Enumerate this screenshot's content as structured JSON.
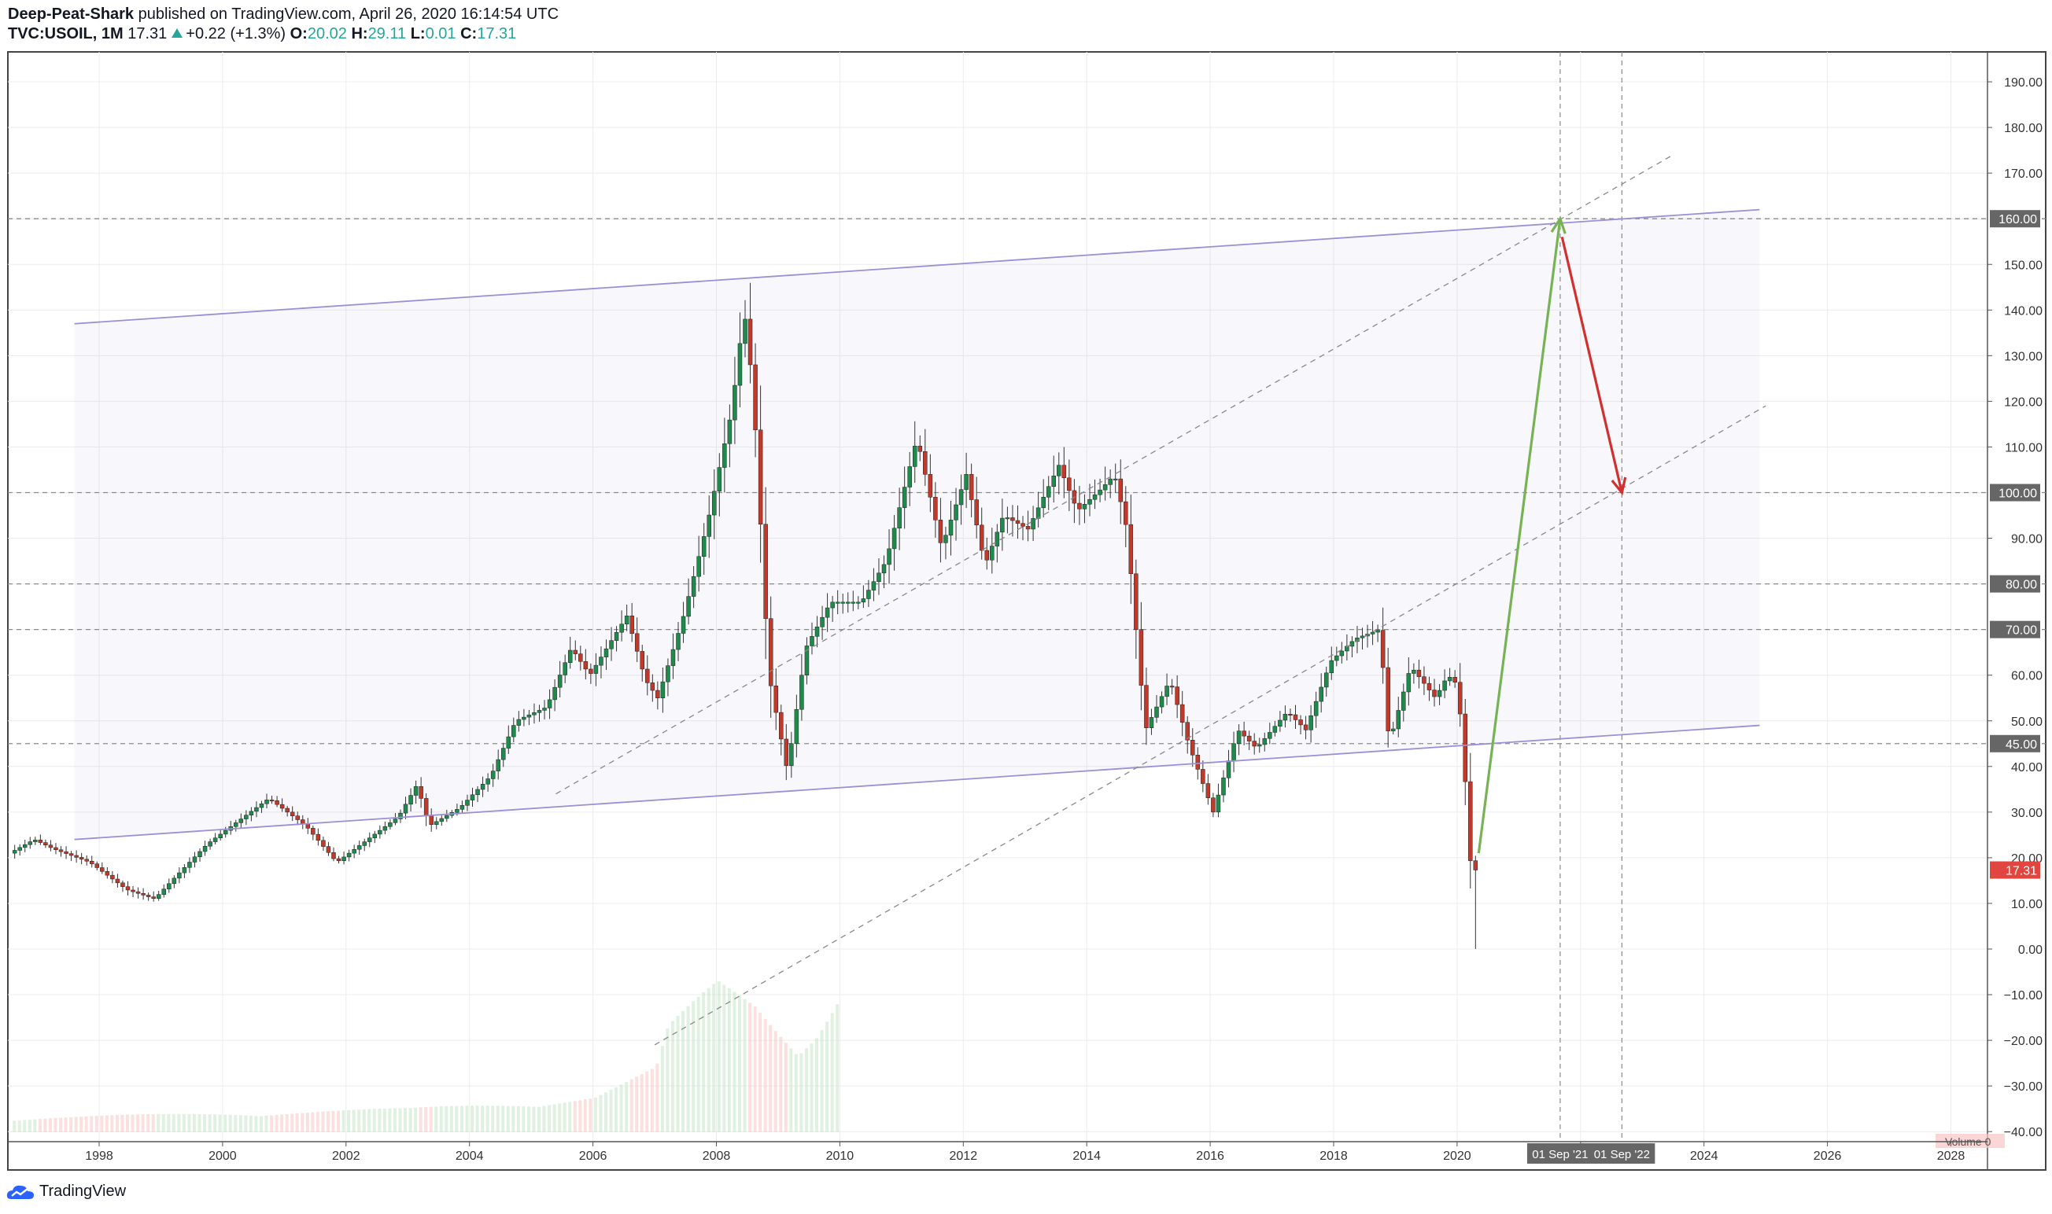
{
  "header": {
    "author": "Deep-Peat-Shark",
    "published": "published on TradingView.com, April 26, 2020 16:14:54 UTC",
    "symbol": "TVC:USOIL, 1M",
    "last": "17.31",
    "change": "+0.22 (+1.3%)",
    "o_label": "O:",
    "o_value": "20.02",
    "h_label": "H:",
    "h_value": "29.11",
    "l_label": "L:",
    "l_value": "0.01",
    "c_label": "C:",
    "c_value": "17.31"
  },
  "footer": {
    "brand": "TradingView"
  },
  "colors": {
    "up": "#26a69a",
    "down": "#ef5350",
    "candle_up_fill": "#ffffff",
    "candle_up_body": "#1f8a4c",
    "candle_down_body": "#c0392b",
    "channel": "#9c8fd6",
    "arrow_up": "#77b255",
    "arrow_down": "#d32f2f",
    "grid": "#ececec",
    "label_bg": "#666666"
  },
  "chart_data": {
    "type": "candlestick",
    "title": "TVC:USOIL, 1M",
    "y_axis": {
      "min": -40,
      "max": 190,
      "step": 10,
      "tick_labels": [
        "190.00",
        "180.00",
        "170.00",
        "160.00",
        "150.00",
        "140.00",
        "130.00",
        "120.00",
        "110.00",
        "100.00",
        "90.00",
        "80.00",
        "70.00",
        "60.00",
        "50.00",
        "45.00",
        "40.00",
        "30.00",
        "20.00",
        "10.00",
        "0.00",
        "−10.00",
        "−20.00",
        "−30.00",
        "−40.00"
      ]
    },
    "x_axis": {
      "tick_labels": [
        "1998",
        "2000",
        "2002",
        "2004",
        "2006",
        "2008",
        "2010",
        "2012",
        "2014",
        "2016",
        "2018",
        "2020",
        "2022",
        "2024",
        "2026",
        "2028"
      ],
      "tick_years": [
        1998,
        2000,
        2002,
        2004,
        2006,
        2008,
        2010,
        2012,
        2014,
        2016,
        2018,
        2020,
        2022,
        2024,
        2026,
        2028
      ]
    },
    "horizontal_levels": [
      {
        "value": 160,
        "label": "160.00"
      },
      {
        "value": 100,
        "label": "100.00"
      },
      {
        "value": 80,
        "label": "80.00"
      },
      {
        "value": 70,
        "label": "70.00"
      },
      {
        "value": 45,
        "label": "45.00"
      }
    ],
    "last_price": {
      "value": 17.31,
      "label": "17.31"
    },
    "vertical_markers": [
      {
        "date": 2021.67,
        "label": "01 Sep '21"
      },
      {
        "date": 2022.67,
        "label": "01 Sep '22"
      }
    ],
    "channel_lines": [
      {
        "name": "upper",
        "from": [
          1997.6,
          137
        ],
        "to": [
          2024.9,
          162
        ]
      },
      {
        "name": "lower",
        "from": [
          1997.6,
          24
        ],
        "to": [
          2024.9,
          49
        ]
      }
    ],
    "dashed_trendlines": [
      {
        "from": [
          2005.4,
          34
        ],
        "to": [
          2023.5,
          174
        ]
      },
      {
        "from": [
          2007.0,
          -21
        ],
        "to": [
          2025.0,
          119
        ]
      }
    ],
    "projection_arrows": [
      {
        "name": "rally",
        "from": [
          2020.35,
          21
        ],
        "to": [
          2021.67,
          160
        ]
      },
      {
        "name": "pullback",
        "from": [
          2021.7,
          156
        ],
        "to": [
          2022.67,
          100
        ]
      }
    ],
    "volume_label": "Volume 0",
    "price_keypoints": [
      [
        1996.6,
        21
      ],
      [
        1997.0,
        24
      ],
      [
        1997.3,
        22
      ],
      [
        1997.9,
        19
      ],
      [
        1998.5,
        13
      ],
      [
        1998.95,
        11
      ],
      [
        1999.3,
        16
      ],
      [
        1999.8,
        23
      ],
      [
        2000.3,
        28
      ],
      [
        2000.8,
        33
      ],
      [
        2001.4,
        27
      ],
      [
        2001.9,
        19
      ],
      [
        2002.3,
        23
      ],
      [
        2002.9,
        29
      ],
      [
        2003.2,
        36
      ],
      [
        2003.4,
        27
      ],
      [
        2003.9,
        31
      ],
      [
        2004.4,
        38
      ],
      [
        2004.8,
        50
      ],
      [
        2005.3,
        53
      ],
      [
        2005.7,
        66
      ],
      [
        2006.0,
        60
      ],
      [
        2006.6,
        73
      ],
      [
        2006.9,
        59
      ],
      [
        2007.1,
        55
      ],
      [
        2007.5,
        72
      ],
      [
        2007.9,
        93
      ],
      [
        2008.3,
        118
      ],
      [
        2008.5,
        140
      ],
      [
        2008.65,
        122
      ],
      [
        2008.9,
        60
      ],
      [
        2009.2,
        39
      ],
      [
        2009.5,
        66
      ],
      [
        2009.9,
        76
      ],
      [
        2010.4,
        76
      ],
      [
        2010.8,
        85
      ],
      [
        2011.3,
        112
      ],
      [
        2011.7,
        88
      ],
      [
        2012.1,
        104
      ],
      [
        2012.4,
        84
      ],
      [
        2012.7,
        95
      ],
      [
        2013.1,
        92
      ],
      [
        2013.6,
        106
      ],
      [
        2013.9,
        96
      ],
      [
        2014.3,
        101
      ],
      [
        2014.5,
        104
      ],
      [
        2014.7,
        92
      ],
      [
        2015.0,
        48
      ],
      [
        2015.4,
        59
      ],
      [
        2015.7,
        45
      ],
      [
        2016.1,
        30
      ],
      [
        2016.5,
        48
      ],
      [
        2016.8,
        44
      ],
      [
        2017.3,
        52
      ],
      [
        2017.6,
        48
      ],
      [
        2018.0,
        63
      ],
      [
        2018.4,
        68
      ],
      [
        2018.8,
        70
      ],
      [
        2018.95,
        45
      ],
      [
        2019.3,
        62
      ],
      [
        2019.7,
        55
      ],
      [
        2019.9,
        60
      ],
      [
        2020.05,
        58
      ],
      [
        2020.15,
        45
      ],
      [
        2020.25,
        20
      ],
      [
        2020.32,
        17.31
      ]
    ],
    "volume_keypoints": [
      [
        1996.6,
        8
      ],
      [
        2000,
        12
      ],
      [
        2003,
        14
      ],
      [
        2006,
        22
      ],
      [
        2007,
        38
      ],
      [
        2007.2,
        62
      ],
      [
        2008,
        90
      ],
      [
        2008.6,
        80
      ],
      [
        2009.3,
        55
      ],
      [
        2010.0,
        95
      ]
    ]
  }
}
